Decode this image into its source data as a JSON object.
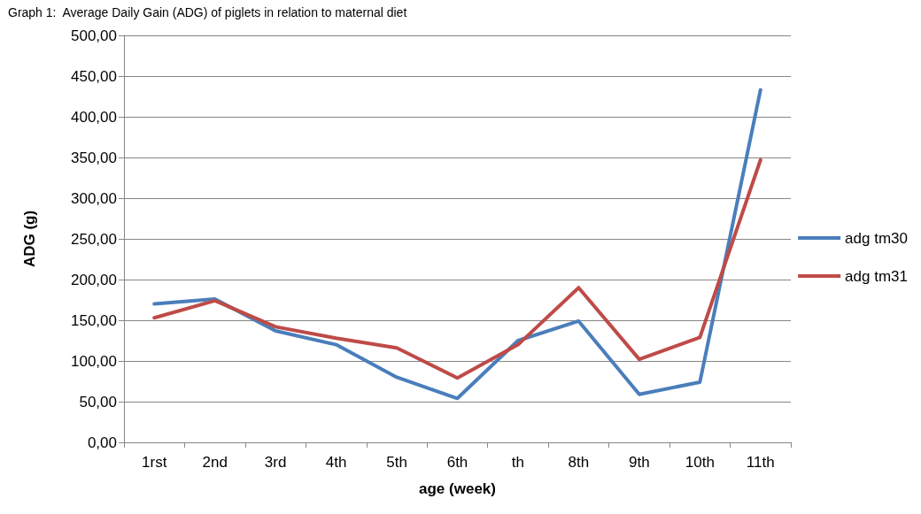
{
  "chart_data": {
    "type": "line",
    "title": "Graph 1:  Average Daily Gain (ADG) of piglets in relation to maternal diet",
    "xlabel": "age (week)",
    "ylabel": "ADG (g)",
    "categories": [
      "1rst",
      "2nd",
      "3rd",
      "4th",
      "5th",
      "6th",
      "th",
      "8th",
      "9th",
      "10th",
      "11th"
    ],
    "series": [
      {
        "name": "adg tm30",
        "color": "#4a7ebb",
        "values": [
          170,
          176,
          137,
          120,
          80,
          54,
          125,
          149,
          59,
          74,
          433
        ]
      },
      {
        "name": "adg tm31",
        "color": "#be4b48",
        "values": [
          153,
          174,
          142,
          128,
          116,
          79,
          120,
          190,
          102,
          129,
          347
        ]
      }
    ],
    "ylim": [
      0,
      500
    ],
    "yticks": [
      {
        "value": 0,
        "label": "0,00"
      },
      {
        "value": 50,
        "label": "50,00"
      },
      {
        "value": 100,
        "label": "100,00"
      },
      {
        "value": 150,
        "label": "150,00"
      },
      {
        "value": 200,
        "label": "200,00"
      },
      {
        "value": 250,
        "label": "250,00"
      },
      {
        "value": 300,
        "label": "300,00"
      },
      {
        "value": 350,
        "label": "350,00"
      },
      {
        "value": 400,
        "label": "400,00"
      },
      {
        "value": 450,
        "label": "450,00"
      },
      {
        "value": 500,
        "label": "500,00"
      }
    ],
    "grid": "y",
    "legend": "right",
    "marker": "none",
    "line_style": "solid"
  }
}
